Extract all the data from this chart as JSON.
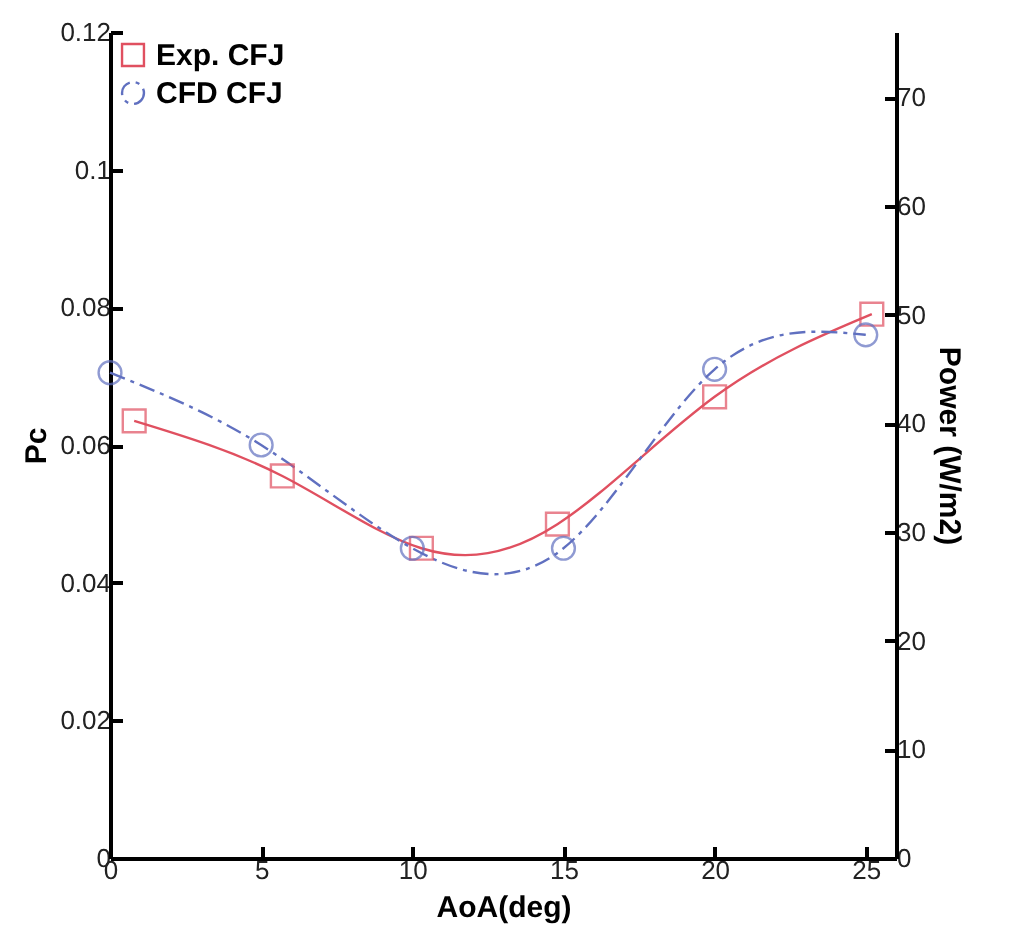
{
  "chart_data": {
    "type": "line",
    "xlabel": "AoA(deg)",
    "ylabel": "Pc",
    "y2label": "Power (W/m2)",
    "xlim": [
      0,
      26
    ],
    "xticks": [
      0,
      5,
      10,
      15,
      20,
      25
    ],
    "ylim": [
      0,
      0.12
    ],
    "yticks": [
      0,
      0.02,
      0.04,
      0.06,
      0.08,
      0.1,
      0.12
    ],
    "y2lim": [
      0,
      76
    ],
    "y2ticks": [
      0,
      10,
      20,
      30,
      40,
      50,
      60,
      70
    ],
    "grid": false,
    "legend": "top left",
    "series": [
      {
        "name": "Exp. CFJ",
        "color": "#e05060",
        "marker": "square",
        "line_style": "solid",
        "x": [
          0.8,
          5.7,
          10.3,
          14.8,
          20,
          25.2
        ],
        "values": [
          0.0635,
          0.0555,
          0.045,
          0.0485,
          0.067,
          0.079
        ]
      },
      {
        "name": "CFD CFJ",
        "color": "#6070c0",
        "marker": "circle",
        "line_style": "dashed",
        "x": [
          0,
          5,
          10,
          15,
          20,
          25
        ],
        "values": [
          0.0705,
          0.06,
          0.045,
          0.045,
          0.071,
          0.076
        ]
      }
    ]
  }
}
